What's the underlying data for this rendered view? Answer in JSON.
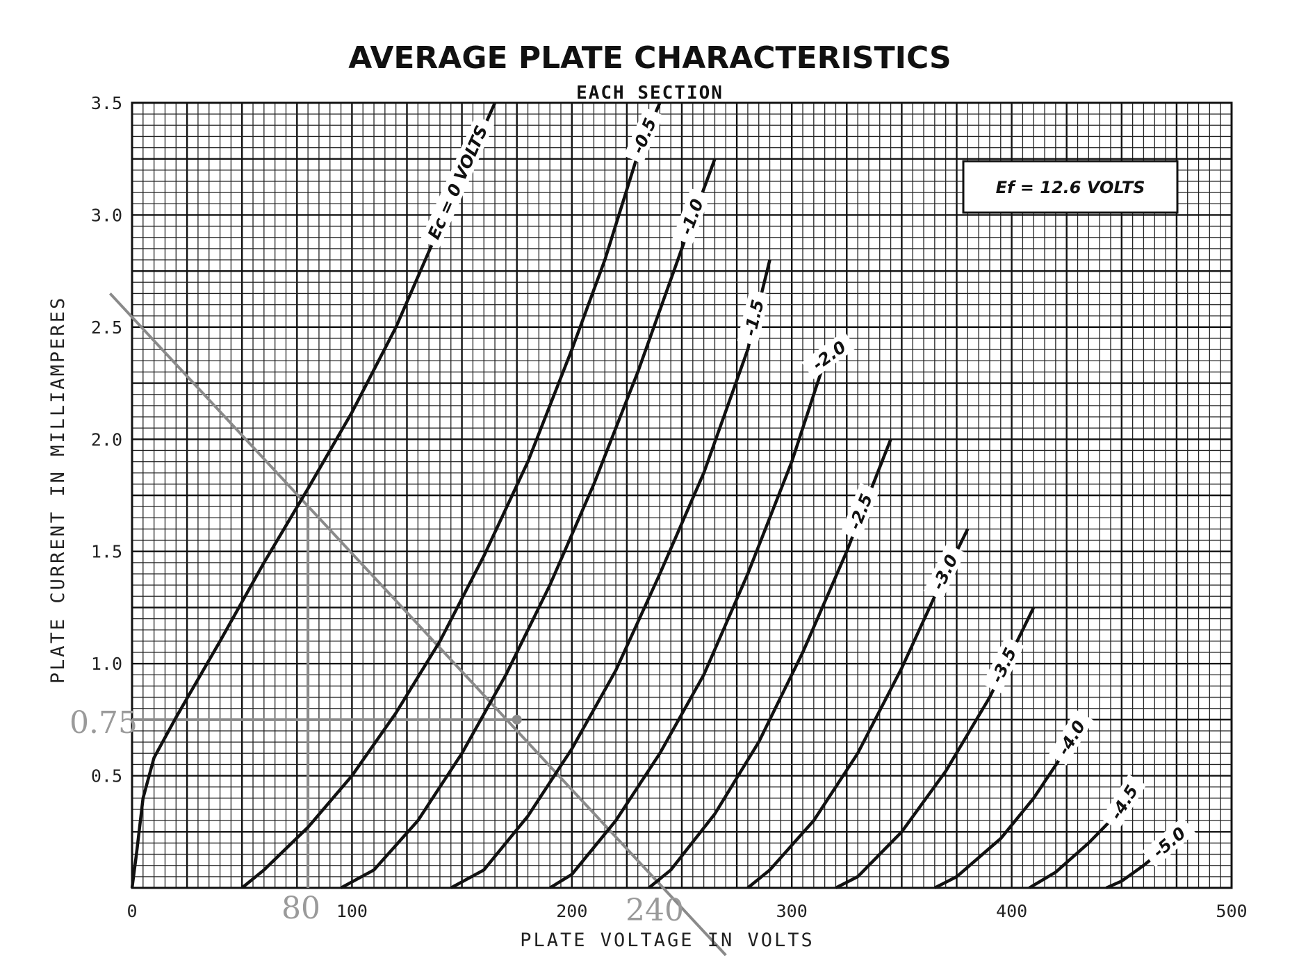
{
  "chart_data": {
    "type": "line",
    "title": "AVERAGE PLATE CHARACTERISTICS",
    "subtitle": "EACH SECTION",
    "xlabel": "PLATE VOLTAGE IN VOLTS",
    "ylabel": "PLATE CURRENT IN MILLIAMPERES",
    "xlim": [
      0,
      500
    ],
    "ylim": [
      0,
      3.5
    ],
    "x_ticks": [
      "0",
      "100",
      "200",
      "300",
      "400",
      "500"
    ],
    "y_ticks": [
      "0.5",
      "1.0",
      "1.5",
      "2.0",
      "2.5",
      "3.0",
      "3.5"
    ],
    "grid": true,
    "annotation_box": "Ef = 12.6 VOLTS",
    "series": [
      {
        "name": "Ec = 0 VOLTS",
        "points": [
          [
            0,
            0
          ],
          [
            2,
            0.15
          ],
          [
            5,
            0.4
          ],
          [
            10,
            0.58
          ],
          [
            20,
            0.76
          ],
          [
            40,
            1.1
          ],
          [
            60,
            1.45
          ],
          [
            80,
            1.78
          ],
          [
            100,
            2.12
          ],
          [
            120,
            2.5
          ],
          [
            140,
            2.95
          ],
          [
            165,
            3.5
          ]
        ]
      },
      {
        "name": "-0.5",
        "points": [
          [
            50,
            0
          ],
          [
            60,
            0.08
          ],
          [
            80,
            0.27
          ],
          [
            100,
            0.5
          ],
          [
            120,
            0.78
          ],
          [
            140,
            1.1
          ],
          [
            160,
            1.48
          ],
          [
            180,
            1.9
          ],
          [
            200,
            2.4
          ],
          [
            215,
            2.8
          ],
          [
            230,
            3.27
          ],
          [
            240,
            3.5
          ]
        ]
      },
      {
        "name": "-1.0",
        "points": [
          [
            95,
            0
          ],
          [
            110,
            0.08
          ],
          [
            130,
            0.3
          ],
          [
            150,
            0.6
          ],
          [
            170,
            0.95
          ],
          [
            190,
            1.35
          ],
          [
            210,
            1.8
          ],
          [
            230,
            2.3
          ],
          [
            250,
            2.85
          ],
          [
            265,
            3.25
          ]
        ]
      },
      {
        "name": "-1.5",
        "points": [
          [
            145,
            0
          ],
          [
            160,
            0.08
          ],
          [
            180,
            0.32
          ],
          [
            200,
            0.62
          ],
          [
            220,
            0.97
          ],
          [
            240,
            1.4
          ],
          [
            260,
            1.85
          ],
          [
            280,
            2.4
          ],
          [
            290,
            2.8
          ]
        ]
      },
      {
        "name": "-2.0",
        "points": [
          [
            190,
            0
          ],
          [
            200,
            0.06
          ],
          [
            220,
            0.3
          ],
          [
            240,
            0.6
          ],
          [
            260,
            0.95
          ],
          [
            280,
            1.4
          ],
          [
            300,
            1.9
          ],
          [
            315,
            2.35
          ],
          [
            322,
            2.4
          ]
        ]
      },
      {
        "name": "-2.5",
        "points": [
          [
            235,
            0
          ],
          [
            245,
            0.08
          ],
          [
            265,
            0.33
          ],
          [
            285,
            0.65
          ],
          [
            305,
            1.05
          ],
          [
            325,
            1.5
          ],
          [
            345,
            2.0
          ]
        ]
      },
      {
        "name": "-3.0",
        "points": [
          [
            280,
            0
          ],
          [
            290,
            0.08
          ],
          [
            310,
            0.3
          ],
          [
            330,
            0.6
          ],
          [
            350,
            0.98
          ],
          [
            365,
            1.3
          ],
          [
            380,
            1.6
          ]
        ]
      },
      {
        "name": "-3.5",
        "points": [
          [
            320,
            0
          ],
          [
            330,
            0.05
          ],
          [
            350,
            0.25
          ],
          [
            370,
            0.52
          ],
          [
            390,
            0.85
          ],
          [
            410,
            1.25
          ]
        ]
      },
      {
        "name": "-4.0",
        "points": [
          [
            365,
            0
          ],
          [
            375,
            0.05
          ],
          [
            395,
            0.22
          ],
          [
            410,
            0.4
          ],
          [
            425,
            0.62
          ],
          [
            433,
            0.75
          ]
        ]
      },
      {
        "name": "-4.5",
        "points": [
          [
            408,
            0
          ],
          [
            420,
            0.07
          ],
          [
            435,
            0.2
          ],
          [
            450,
            0.35
          ],
          [
            455,
            0.43
          ]
        ]
      },
      {
        "name": "-5.0",
        "points": [
          [
            443,
            0
          ],
          [
            450,
            0.03
          ],
          [
            460,
            0.1
          ],
          [
            470,
            0.18
          ],
          [
            476,
            0.23
          ]
        ]
      }
    ],
    "handwritten_notes": {
      "y_value": "0.75",
      "x_value_1": "80",
      "x_value_2": "240"
    }
  },
  "colors": {
    "grid": "#222222",
    "curve": "#111111",
    "pencil": "#8a8a8a"
  }
}
